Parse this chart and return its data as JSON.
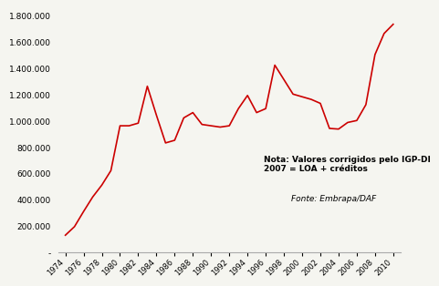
{
  "years": [
    1974,
    1975,
    1976,
    1977,
    1978,
    1979,
    1980,
    1981,
    1982,
    1983,
    1984,
    1985,
    1986,
    1987,
    1988,
    1989,
    1990,
    1991,
    1992,
    1993,
    1994,
    1995,
    1996,
    1997,
    1998,
    1999,
    2000,
    2001,
    2002,
    2003,
    2004,
    2005,
    2006,
    2007,
    2008,
    2009,
    2010
  ],
  "values": [
    130000,
    195000,
    310000,
    420000,
    510000,
    620000,
    960000,
    960000,
    980000,
    1260000,
    1040000,
    830000,
    850000,
    1020000,
    1060000,
    970000,
    960000,
    950000,
    960000,
    1090000,
    1190000,
    1060000,
    1090000,
    1420000,
    1310000,
    1200000,
    1180000,
    1160000,
    1130000,
    940000,
    935000,
    985000,
    1000000,
    1120000,
    1500000,
    1660000,
    1730000
  ],
  "line_color": "#cc0000",
  "line_width": 1.2,
  "ylim": [
    0,
    1850000
  ],
  "yticks": [
    0,
    200000,
    400000,
    600000,
    800000,
    1000000,
    1200000,
    1400000,
    1600000,
    1800000
  ],
  "xtick_years": [
    1974,
    1976,
    1978,
    1980,
    1982,
    1984,
    1986,
    1988,
    1990,
    1992,
    1994,
    1996,
    1998,
    2000,
    2002,
    2004,
    2006,
    2008,
    2010
  ],
  "note_text": "Nota: Valores corrigidos pelo IGP-DI\n2007 = LOA + créditos",
  "source_text": "Fonte: Embrapa/DAF",
  "background_color": "#f5f5f0",
  "note_fontsize": 6.5,
  "source_fontsize": 6.5,
  "tick_fontsize": 6.0,
  "ytick_fontsize": 6.5
}
